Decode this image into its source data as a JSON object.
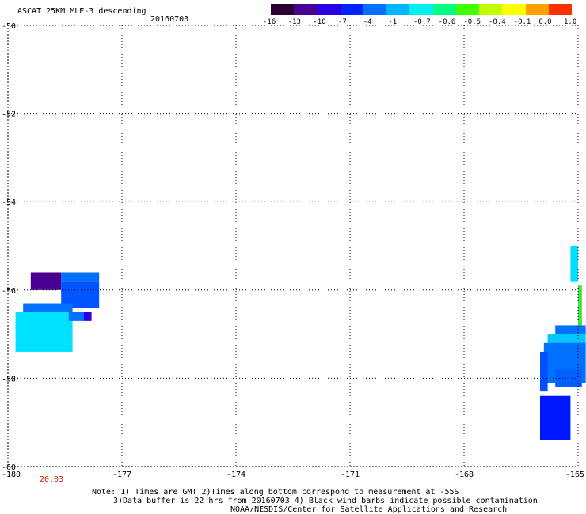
{
  "header": {
    "title": "ASCAT 25KM MLE-3 descending",
    "date": "20160703"
  },
  "colorbar": {
    "labels": [
      "-16",
      "-13",
      "-10",
      "-7",
      "-4",
      "-1",
      "-0.7",
      "-0.6",
      "-0.5",
      "-0.4",
      "-0.1",
      "0.0",
      "1.0"
    ],
    "colors": [
      "#2a0030",
      "#4a0090",
      "#2a00e0",
      "#0022ff",
      "#0070ff",
      "#00b4ff",
      "#00f0f0",
      "#00ff80",
      "#40ff00",
      "#c0ff00",
      "#ffff00",
      "#ffa000",
      "#ff3000"
    ]
  },
  "axes": {
    "y_ticks": [
      "-50",
      "-52",
      "-54",
      "-56",
      "-58",
      "-60"
    ],
    "x_ticks": [
      "-180",
      "-177",
      "-174",
      "-171",
      "-168",
      "-165"
    ],
    "lat_range": [
      -60,
      -50
    ],
    "lon_range": [
      -180,
      -165
    ]
  },
  "time_label": "20:03",
  "cells": [
    {
      "lon": -179.4,
      "lat": -55.6,
      "w": 0.8,
      "h": 0.4,
      "color": "#4a0090"
    },
    {
      "lon": -178.6,
      "lat": -55.6,
      "w": 1.0,
      "h": 0.2,
      "color": "#0070ff"
    },
    {
      "lon": -178.6,
      "lat": -55.8,
      "w": 1.0,
      "h": 0.6,
      "color": "#0055ff"
    },
    {
      "lon": -179.6,
      "lat": -56.3,
      "w": 1.3,
      "h": 0.2,
      "color": "#0070ff"
    },
    {
      "lon": -179.8,
      "lat": -56.5,
      "w": 1.5,
      "h": 0.9,
      "color": "#00e0ff"
    },
    {
      "lon": -178.4,
      "lat": -56.5,
      "w": 0.4,
      "h": 0.2,
      "color": "#0070ff"
    },
    {
      "lon": -178.0,
      "lat": -56.5,
      "w": 0.2,
      "h": 0.2,
      "color": "#2a00e0"
    },
    {
      "lon": -165.2,
      "lat": -55.0,
      "w": 0.2,
      "h": 0.8,
      "color": "#00e0ff"
    },
    {
      "lon": -165.0,
      "lat": -55.9,
      "w": 0.1,
      "h": 0.9,
      "color": "#40e040"
    },
    {
      "lon": -165.6,
      "lat": -56.8,
      "w": 0.8,
      "h": 0.2,
      "color": "#0070ff"
    },
    {
      "lon": -165.8,
      "lat": -57.0,
      "w": 1.0,
      "h": 0.4,
      "color": "#00c8ff"
    },
    {
      "lon": -165.9,
      "lat": -57.2,
      "w": 1.1,
      "h": 0.9,
      "color": "#0070ff"
    },
    {
      "lon": -166.0,
      "lat": -57.4,
      "w": 0.2,
      "h": 0.9,
      "color": "#0050ff"
    },
    {
      "lon": -165.6,
      "lat": -57.8,
      "w": 0.7,
      "h": 0.4,
      "color": "#0060ff"
    },
    {
      "lon": -166.0,
      "lat": -58.4,
      "w": 0.8,
      "h": 1.0,
      "color": "#0018ff"
    }
  ],
  "footer": {
    "note_line1": "Note: 1) Times are GMT 2)Times along bottom correspond to measurement at -55S",
    "note_line2": "3)Data buffer is 22 hrs from 20160703 4) Black wind barbs indicate possible contamination",
    "credit": "NOAA/NESDIS/Center for Satellite Applications and Research"
  }
}
